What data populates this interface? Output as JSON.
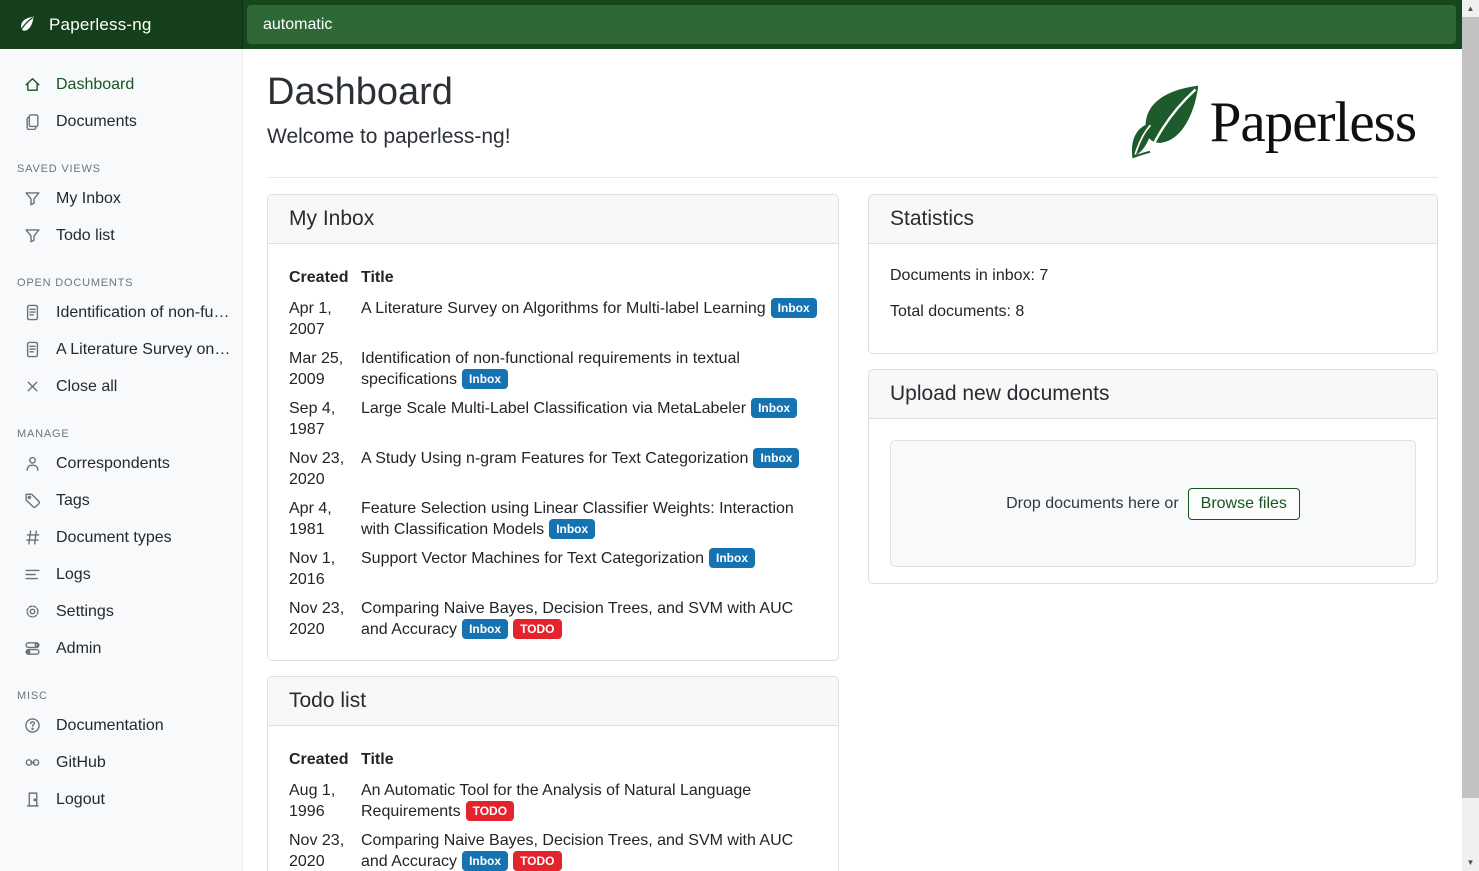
{
  "navbar": {
    "brand": "Paperless-ng",
    "search_value": "automatic"
  },
  "sidebar": {
    "main_items": [
      {
        "icon": "house",
        "label": "Dashboard",
        "active": true
      },
      {
        "icon": "files",
        "label": "Documents",
        "active": false
      }
    ],
    "sections": [
      {
        "label": "SAVED VIEWS",
        "items": [
          {
            "icon": "funnel",
            "label": "My Inbox"
          },
          {
            "icon": "funnel",
            "label": "Todo list"
          }
        ]
      },
      {
        "label": "OPEN DOCUMENTS",
        "items": [
          {
            "icon": "file-text",
            "label": "Identification of non-functio…"
          },
          {
            "icon": "file-text",
            "label": "A Literature Survey on Algori…"
          },
          {
            "icon": "x",
            "label": "Close all"
          }
        ]
      },
      {
        "label": "MANAGE",
        "items": [
          {
            "icon": "person",
            "label": "Correspondents"
          },
          {
            "icon": "tag",
            "label": "Tags"
          },
          {
            "icon": "hash",
            "label": "Document types"
          },
          {
            "icon": "text-left",
            "label": "Logs"
          },
          {
            "icon": "gear",
            "label": "Settings"
          },
          {
            "icon": "toggles",
            "label": "Admin"
          }
        ]
      },
      {
        "label": "MISC",
        "items": [
          {
            "icon": "question-circle",
            "label": "Documentation"
          },
          {
            "icon": "link",
            "label": "GitHub"
          },
          {
            "icon": "door",
            "label": "Logout"
          }
        ]
      }
    ]
  },
  "header": {
    "title": "Dashboard",
    "subtitle": "Welcome to paperless-ng!",
    "logo_text": "Paperless"
  },
  "tags": {
    "inbox": {
      "label": "Inbox",
      "color": "#1673b2"
    },
    "todo": {
      "label": "TODO",
      "color": "#e3242c"
    }
  },
  "cards": {
    "my_inbox": {
      "title": "My Inbox",
      "columns": [
        "Created",
        "Title"
      ],
      "rows": [
        {
          "date": "Apr 1, 2007",
          "title": "A Literature Survey on Algorithms for Multi-label Learning",
          "tags": [
            "inbox"
          ]
        },
        {
          "date": "Mar 25, 2009",
          "title": "Identification of non-functional requirements in textual specifications",
          "tags": [
            "inbox"
          ]
        },
        {
          "date": "Sep 4, 1987",
          "title": "Large Scale Multi-Label Classification via MetaLabeler",
          "tags": [
            "inbox"
          ]
        },
        {
          "date": "Nov 23, 2020",
          "title": "A Study Using n-gram Features for Text Categorization",
          "tags": [
            "inbox"
          ]
        },
        {
          "date": "Apr 4, 1981",
          "title": "Feature Selection using Linear Classifier Weights: Interaction with Classification Models",
          "tags": [
            "inbox"
          ]
        },
        {
          "date": "Nov 1, 2016",
          "title": "Support Vector Machines for Text Categorization",
          "tags": [
            "inbox"
          ]
        },
        {
          "date": "Nov 23, 2020",
          "title": "Comparing Naive Bayes, Decision Trees, and SVM with AUC and Accuracy",
          "tags": [
            "inbox",
            "todo"
          ]
        }
      ]
    },
    "todo": {
      "title": "Todo list",
      "columns": [
        "Created",
        "Title"
      ],
      "rows": [
        {
          "date": "Aug 1, 1996",
          "title": "An Automatic Tool for the Analysis of Natural Language Requirements",
          "tags": [
            "todo"
          ]
        },
        {
          "date": "Nov 23, 2020",
          "title": "Comparing Naive Bayes, Decision Trees, and SVM with AUC and Accuracy",
          "tags": [
            "inbox",
            "todo"
          ]
        }
      ]
    },
    "statistics": {
      "title": "Statistics",
      "lines": [
        "Documents in inbox: 7",
        "Total documents: 8"
      ]
    },
    "upload": {
      "title": "Upload new documents",
      "drop_text": "Drop documents here or",
      "browse_label": "Browse files"
    }
  },
  "colors": {
    "navbar": "#15481d",
    "brand_bg": "#143f1a",
    "search_bg": "#2d6836",
    "accent_green": "#17541f",
    "inbox_tag": "#1673b2",
    "todo_tag": "#e3242c"
  }
}
